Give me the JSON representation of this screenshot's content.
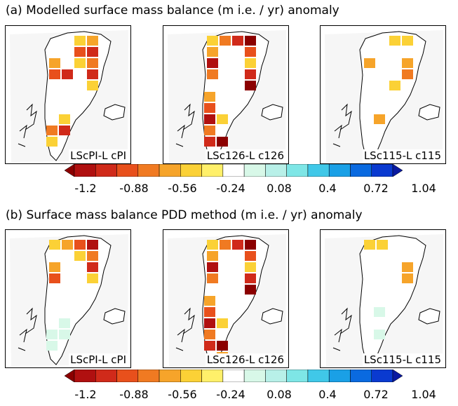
{
  "section_a": {
    "title": "(a) Modelled surface mass balance (m i.e. / yr) anomaly",
    "panels": [
      {
        "label": "LScPI-L  cPI",
        "intensity": 0.8
      },
      {
        "label": "LSc126-L  c126",
        "intensity": 1.0
      },
      {
        "label": "LSc115-L  c115",
        "intensity": 0.35
      }
    ]
  },
  "section_b": {
    "title": "(b) Surface mass balance PDD method (m i.e. / yr) anomaly",
    "panels": [
      {
        "label": "LScPI-L  cPI",
        "intensity": 0.9
      },
      {
        "label": "LSc126-L  c126",
        "intensity": 1.0
      },
      {
        "label": "LSc115-L  c115",
        "intensity": 0.3
      }
    ]
  },
  "colorbar": {
    "colors": [
      "#8b0000",
      "#b01010",
      "#d02a1a",
      "#e8501c",
      "#f07a22",
      "#f6a42a",
      "#fbd136",
      "#fff06a",
      "#ffffff",
      "#d8f8e8",
      "#b8f0e8",
      "#7ee6e6",
      "#40c8e8",
      "#1aa0e6",
      "#0a6ae0",
      "#0a3ad0",
      "#0a1aa0"
    ],
    "ticks": [
      "-1.2",
      "-0.88",
      "-0.56",
      "-0.24",
      "0.08",
      "0.4",
      "0.72",
      "1.04"
    ]
  }
}
